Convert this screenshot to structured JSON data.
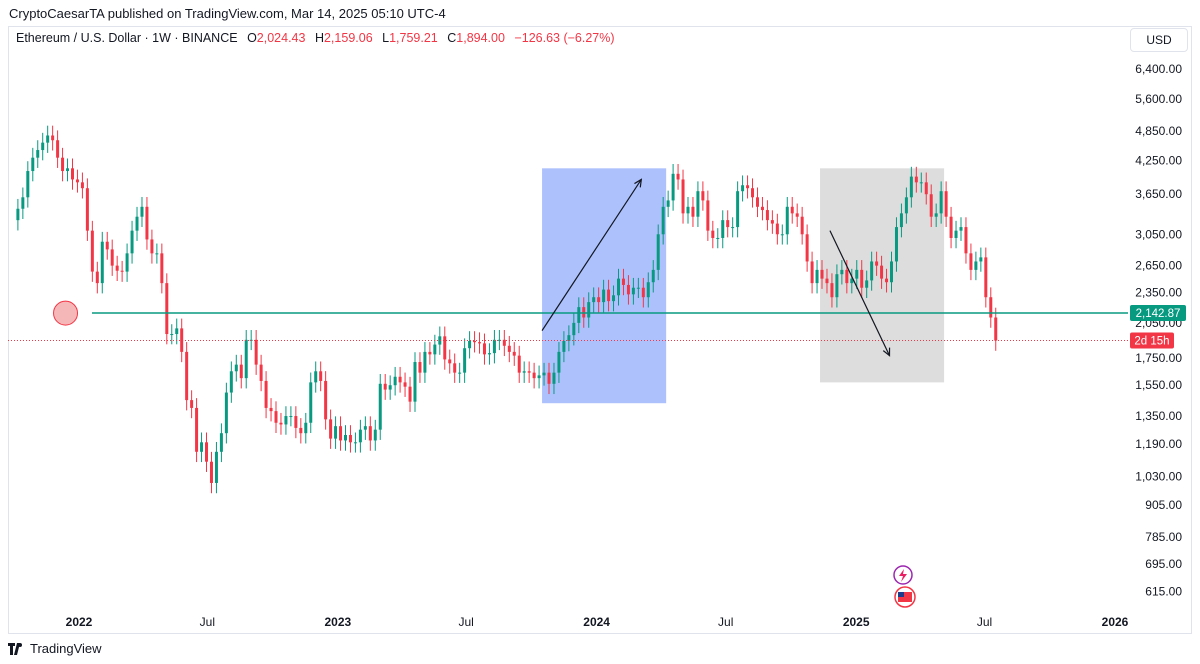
{
  "header": {
    "published_line": "CryptoCaesarTA published on TradingView.com, Mar 14, 2025 05:10 UTC-4"
  },
  "legend": {
    "symbol": "Ethereum / U.S. Dollar · 1W · BINANCE",
    "open_label": "O",
    "open": "2,024.43",
    "high_label": "H",
    "high": "2,159.06",
    "low_label": "L",
    "low": "1,759.21",
    "close_label": "C",
    "close": "1,894.00",
    "change": "−126.63 (−6.27%)"
  },
  "currency_button": "USD",
  "footer": {
    "brand": "TradingView"
  },
  "colors": {
    "up": "#089981",
    "down": "#f23645",
    "level_line": "#089981",
    "rally_box": "#a9bffd",
    "drop_box": "#d9d9d9",
    "price_line": "#f23645"
  },
  "chart_data": {
    "type": "candlestick",
    "symbol": "ETHUSD",
    "exchange": "BINANCE",
    "interval": "1W",
    "scale": "log",
    "y_ticks": [
      6400,
      5600,
      4850,
      4250,
      3650,
      3050,
      2650,
      2350,
      2050,
      1750,
      1550,
      1350,
      1190,
      1030,
      905,
      785,
      695,
      615
    ],
    "y_tick_labels": [
      "6,400.00",
      "5,600.00",
      "4,850.00",
      "4,250.00",
      "3,650.00",
      "3,050.00",
      "2,650.00",
      "2,350.00",
      "2,050.00",
      "1,750.00",
      "1,550.00",
      "1,350.00",
      "1,190.00",
      "1,030.00",
      "905.00",
      "785.00",
      "695.00",
      "615.00"
    ],
    "x_ticks": [
      {
        "label": "2022",
        "bold": true,
        "date": "2022-01-01"
      },
      {
        "label": "Jul",
        "bold": false,
        "date": "2022-07-01"
      },
      {
        "label": "2023",
        "bold": true,
        "date": "2023-01-01"
      },
      {
        "label": "Jul",
        "bold": false,
        "date": "2023-07-01"
      },
      {
        "label": "2024",
        "bold": true,
        "date": "2024-01-01"
      },
      {
        "label": "Jul",
        "bold": false,
        "date": "2024-07-01"
      },
      {
        "label": "2025",
        "bold": true,
        "date": "2025-01-01"
      },
      {
        "label": "Jul",
        "bold": false,
        "date": "2025-07-01"
      },
      {
        "label": "2026",
        "bold": true,
        "date": "2026-01-01"
      }
    ],
    "first_candle_date": "2021-10-04",
    "close_series": [
      3420,
      3600,
      4050,
      4300,
      4450,
      4600,
      4750,
      4650,
      4300,
      4050,
      4100,
      3900,
      3850,
      3750,
      3100,
      2580,
      2450,
      2950,
      2850,
      2650,
      2590,
      2580,
      2800,
      3100,
      3300,
      3450,
      2980,
      2800,
      2800,
      2450,
      1950,
      1950,
      2000,
      1800,
      1450,
      1400,
      1150,
      1200,
      1100,
      1000,
      1150,
      1250,
      1500,
      1650,
      1700,
      1600,
      1900,
      1900,
      1700,
      1580,
      1400,
      1380,
      1310,
      1300,
      1350,
      1350,
      1280,
      1250,
      1310,
      1570,
      1650,
      1580,
      1330,
      1220,
      1290,
      1210,
      1240,
      1200,
      1200,
      1270,
      1290,
      1210,
      1270,
      1560,
      1520,
      1550,
      1610,
      1570,
      1540,
      1440,
      1720,
      1640,
      1800,
      1780,
      1860,
      1930,
      1740,
      1710,
      1640,
      1640,
      1830,
      1890,
      1880,
      1870,
      1780,
      1790,
      1900,
      1900,
      1850,
      1800,
      1770,
      1640,
      1650,
      1640,
      1600,
      1620,
      1640,
      1560,
      1640,
      1800,
      1890,
      1940,
      2050,
      2200,
      2100,
      2250,
      2300,
      2250,
      2380,
      2260,
      2320,
      2500,
      2430,
      2330,
      2400,
      2400,
      2300,
      2460,
      2600,
      3050,
      3450,
      3550,
      4000,
      3900,
      3350,
      3450,
      3300,
      3700,
      3550,
      3100,
      3000,
      3000,
      3250,
      3150,
      3150,
      3700,
      3800,
      3750,
      3600,
      3450,
      3400,
      3250,
      3200,
      3050,
      3050,
      3450,
      3350,
      3300,
      3050,
      2700,
      2450,
      2600,
      2500,
      2450,
      2300,
      2550,
      2600,
      2450,
      2500,
      2600,
      2400,
      2480,
      2700,
      2650,
      2500,
      2460,
      2700,
      3150,
      3350,
      3600,
      3950,
      3850,
      3850,
      3650,
      3300,
      3350,
      3700,
      3300,
      3000,
      3100,
      3150,
      2800,
      2600,
      2700,
      2750,
      2300,
      2100,
      1894
    ],
    "horizontal_level": {
      "value": 2142.87,
      "label": "2,142.87"
    },
    "last_price": {
      "value": 1894.0,
      "countdown": "2d 15h"
    },
    "annotations": [
      {
        "type": "rectangle",
        "from_date": "2023-10-16",
        "to_date": "2024-04-08",
        "from_price": 1430,
        "to_price": 4100
      },
      {
        "type": "rectangle",
        "from_date": "2024-11-11",
        "to_date": "2025-05-05",
        "from_price": 1570,
        "to_price": 4100
      },
      {
        "type": "arrow",
        "from_date": "2023-10-16",
        "from_price": 1980,
        "to_date": "2024-03-04",
        "to_price": 3900
      },
      {
        "type": "arrow",
        "from_date": "2024-11-25",
        "from_price": 3100,
        "to_date": "2025-02-17",
        "to_price": 1770
      },
      {
        "type": "circle",
        "date": "2021-12-13",
        "price": 2142
      }
    ]
  }
}
